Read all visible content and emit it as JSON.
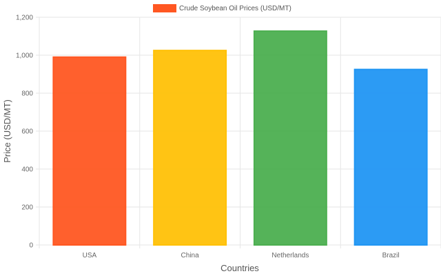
{
  "chart_data": {
    "type": "bar",
    "categories": [
      "USA",
      "China",
      "Netherlands",
      "Brazil"
    ],
    "series": [
      {
        "name": "Crude Soybean Oil Prices (USD/MT)",
        "values": [
          990,
          1025,
          1127,
          925
        ],
        "colors": [
          "#ff5722",
          "#ffc107",
          "#4caf50",
          "#2196f3"
        ]
      }
    ],
    "xlabel": "Countries",
    "ylabel": "Price (USD/MT)",
    "ylim": [
      0,
      1200
    ],
    "yticks": [
      0,
      200,
      400,
      600,
      800,
      1000,
      1200
    ],
    "ytick_labels": [
      "0",
      "200",
      "400",
      "600",
      "800",
      "1,000",
      "1,200"
    ],
    "grid": true,
    "legend": "top-center",
    "legend_color": "#ff5722"
  }
}
